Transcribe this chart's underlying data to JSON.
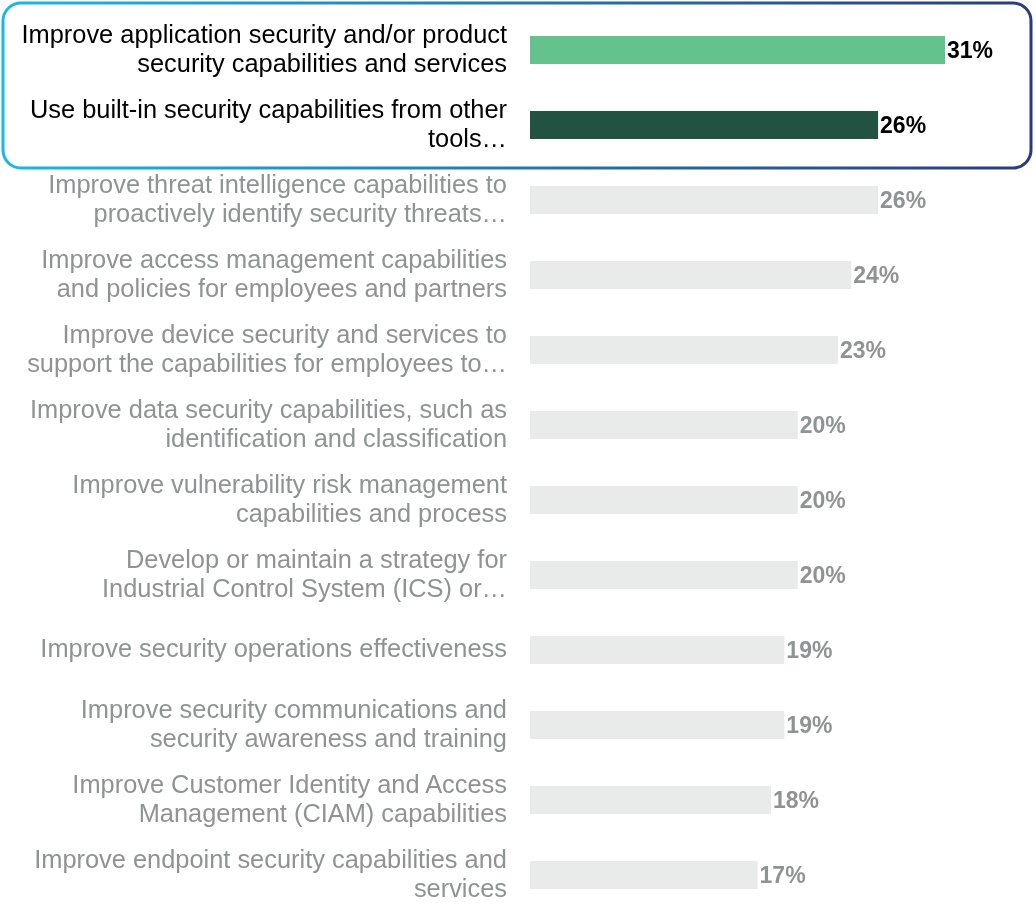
{
  "chart_data": {
    "type": "bar",
    "orientation": "horizontal",
    "categories": [
      "Improve application security and/or product security capabilities and services",
      "Use built-in security capabilities from other tools…",
      "Improve threat intelligence capabilities to proactively identify security threats…",
      "Improve access management capabilities and policies for employees and partners",
      "Improve device security and services to support the capabilities for employees to…",
      "Improve data security capabilities, such as identification and classification",
      "Improve vulnerability risk management capabilities and process",
      "Develop or maintain a strategy for Industrial Control System (ICS) or…",
      "Improve security operations effectiveness",
      "Improve security communications and security awareness and training",
      "Improve Customer Identity and Access Management (CIAM) capabilities",
      "Improve endpoint security capabilities and services"
    ],
    "values": [
      31,
      26,
      26,
      24,
      23,
      20,
      20,
      20,
      19,
      19,
      18,
      17
    ],
    "colors": [
      "#64c28d",
      "#225242",
      "#e8ebea",
      "#e8ebea",
      "#e8ebea",
      "#e8ebea",
      "#e8ebea",
      "#e8ebea",
      "#e8ebea",
      "#e8ebea",
      "#e8ebea",
      "#e8ebea"
    ],
    "value_labels": [
      "31%",
      "26%",
      "26%",
      "24%",
      "23%",
      "20%",
      "20%",
      "20%",
      "19%",
      "19%",
      "18%",
      "17%"
    ],
    "relative": false
  }
}
